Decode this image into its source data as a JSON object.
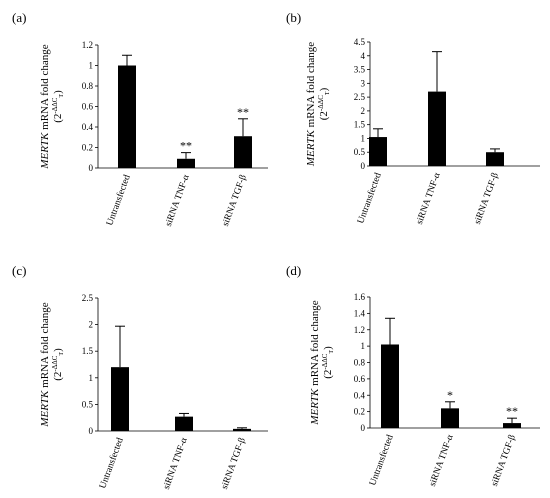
{
  "chart_data": [
    {
      "type": "bar",
      "panel_label": "(a)",
      "categories": [
        "Untransfected",
        "siRNA TNF-α",
        "siRNA TGF-β"
      ],
      "values": [
        1.0,
        0.09,
        0.31
      ],
      "errors": [
        0.1,
        0.06,
        0.17
      ],
      "significance": [
        "",
        "**",
        "**"
      ],
      "ylabel": {
        "gene": "MERTK",
        "text": " mRNA fold change",
        "formula_base": "(2",
        "formula_exp": "-ΔΔC",
        "formula_sub": "T",
        "formula_close": ")"
      },
      "ylim": [
        0,
        1.2
      ],
      "yticks": [
        "0",
        "0.2",
        "0.4",
        "0.6",
        "0.8",
        "1",
        "1.2"
      ],
      "grid": false,
      "bar_color": "#000000"
    },
    {
      "type": "bar",
      "panel_label": "(b)",
      "categories": [
        "Untransfected",
        "siRNA TNF-α",
        "siRNA TGF-β"
      ],
      "values": [
        1.05,
        2.7,
        0.5
      ],
      "errors": [
        0.3,
        1.45,
        0.12
      ],
      "significance": [
        "",
        "",
        ""
      ],
      "ylabel": {
        "gene": "MERTK",
        "text": " mRNA fold change",
        "formula_base": "(2",
        "formula_exp": "-ΔΔC",
        "formula_sub": "T",
        "formula_close": ")"
      },
      "ylim": [
        0,
        4.5
      ],
      "yticks": [
        "0",
        "0.5",
        "1",
        "1.5",
        "2",
        "2.5",
        "3",
        "3.5",
        "4",
        "4.5"
      ],
      "grid": false,
      "bar_color": "#000000"
    },
    {
      "type": "bar",
      "panel_label": "(c)",
      "categories": [
        "Untransfected",
        "siRNA TNF-α",
        "siRNA TGF-β"
      ],
      "values": [
        1.2,
        0.27,
        0.04
      ],
      "errors": [
        0.77,
        0.06,
        0.02
      ],
      "significance": [
        "",
        "",
        ""
      ],
      "ylabel": {
        "gene": "MERTK",
        "text": " mRNA fold change",
        "formula_base": "(2",
        "formula_exp": "-ΔΔC",
        "formula_sub": "T",
        "formula_close": ")"
      },
      "ylim": [
        0,
        2.5
      ],
      "yticks": [
        "0",
        "0.5",
        "1",
        "1.5",
        "2",
        "2.5"
      ],
      "grid": false,
      "bar_color": "#000000"
    },
    {
      "type": "bar",
      "panel_label": "(d)",
      "categories": [
        "Untransfected",
        "siRNA TNF-α",
        "siRNA TGF-β"
      ],
      "values": [
        1.02,
        0.24,
        0.06
      ],
      "errors": [
        0.32,
        0.08,
        0.06
      ],
      "significance": [
        "",
        "*",
        "**"
      ],
      "ylabel": {
        "gene": "MERTK",
        "text": " mRNA fold change",
        "formula_base": "(2",
        "formula_exp": "-ΔΔC",
        "formula_sub": "T",
        "formula_close": ")"
      },
      "ylim": [
        0,
        1.6
      ],
      "yticks": [
        "0",
        "0.2",
        "0.4",
        "0.6",
        "0.8",
        "1",
        "1.2",
        "1.4",
        "1.6"
      ],
      "grid": false,
      "bar_color": "#000000"
    }
  ]
}
